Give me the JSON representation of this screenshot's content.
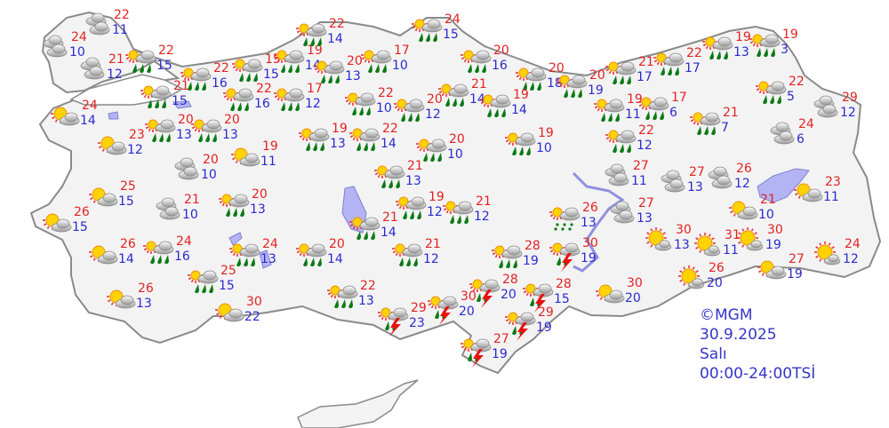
{
  "colors": {
    "max_temp": "#e32222",
    "min_temp": "#2a2ad0",
    "land": "#f3f3f3",
    "border": "#8a8a8a",
    "water": "#b4b4f4",
    "rain_drop": "#0a7a14",
    "thunder": "#e81010",
    "sun": "#ffd200"
  },
  "footer": {
    "copyright": "©MGM",
    "date": "30.9.2025",
    "day": "Salı",
    "period": "00:00-24:00TSİ"
  },
  "stations": [
    {
      "icon": "cloudy",
      "max": "22",
      "min": "11"
    },
    {
      "icon": "cloudy",
      "max": "24",
      "min": "10"
    },
    {
      "icon": "cloudy",
      "max": "21",
      "min": "12"
    },
    {
      "icon": "rain",
      "max": "22",
      "min": "15"
    },
    {
      "icon": "rain",
      "max": "22",
      "min": "16"
    },
    {
      "icon": "rain",
      "max": "15",
      "min": "15"
    },
    {
      "icon": "rain",
      "max": "19",
      "min": "14"
    },
    {
      "icon": "rain",
      "max": "22",
      "min": "14"
    },
    {
      "icon": "rain",
      "max": "20",
      "min": "13"
    },
    {
      "icon": "rain",
      "max": "17",
      "min": "10"
    },
    {
      "icon": "rain",
      "max": "21",
      "min": "15"
    },
    {
      "icon": "rain",
      "max": "22",
      "min": "16"
    },
    {
      "icon": "rain",
      "max": "17",
      "min": "12"
    },
    {
      "icon": "rain",
      "max": "22",
      "min": "10"
    },
    {
      "icon": "sun-cloud",
      "max": "24",
      "min": "14"
    },
    {
      "icon": "rain",
      "max": "20",
      "min": "13"
    },
    {
      "icon": "rain",
      "max": "20",
      "min": "13"
    },
    {
      "icon": "sun-cloud",
      "max": "23",
      "min": "12"
    },
    {
      "icon": "sun-cloud",
      "max": "19",
      "min": "11"
    },
    {
      "icon": "rain",
      "max": "19",
      "min": "13"
    },
    {
      "icon": "rain",
      "max": "22",
      "min": "14"
    },
    {
      "icon": "rain",
      "max": "20",
      "min": "12"
    },
    {
      "icon": "rain",
      "max": "24",
      "min": "15"
    },
    {
      "icon": "rain",
      "max": "20",
      "min": "16"
    },
    {
      "icon": "rain",
      "max": "20",
      "min": "18"
    },
    {
      "icon": "rain",
      "max": "20",
      "min": "19"
    },
    {
      "icon": "rain",
      "max": "21",
      "min": "17"
    },
    {
      "icon": "rain",
      "max": "22",
      "min": "17"
    },
    {
      "icon": "rain",
      "max": "19",
      "min": "13"
    },
    {
      "icon": "rain",
      "max": "19",
      "min": "3"
    },
    {
      "icon": "rain",
      "max": "21",
      "min": "14"
    },
    {
      "icon": "rain",
      "max": "19",
      "min": "14"
    },
    {
      "icon": "rain",
      "max": "20",
      "min": "10"
    },
    {
      "icon": "rain",
      "max": "19",
      "min": "10"
    },
    {
      "icon": "rain",
      "max": "19",
      "min": "11"
    },
    {
      "icon": "rain",
      "max": "17",
      "min": "6"
    },
    {
      "icon": "rain",
      "max": "22",
      "min": "12"
    },
    {
      "icon": "rain",
      "max": "21",
      "min": "7"
    },
    {
      "icon": "rain",
      "max": "22",
      "min": "5"
    },
    {
      "icon": "cloudy",
      "max": "29",
      "min": "12"
    },
    {
      "icon": "cloudy",
      "max": "24",
      "min": "6"
    },
    {
      "icon": "rain",
      "max": "21",
      "min": "13"
    },
    {
      "icon": "cloudy",
      "max": "20",
      "min": "10"
    },
    {
      "icon": "sun-cloud",
      "max": "25",
      "min": "15"
    },
    {
      "icon": "cloudy",
      "max": "21",
      "min": "10"
    },
    {
      "icon": "rain",
      "max": "20",
      "min": "13"
    },
    {
      "icon": "sun-cloud",
      "max": "26",
      "min": "15"
    },
    {
      "icon": "sun-cloud",
      "max": "26",
      "min": "14"
    },
    {
      "icon": "rain",
      "max": "24",
      "min": "16"
    },
    {
      "icon": "rain",
      "max": "24",
      "min": "13"
    },
    {
      "icon": "rain",
      "max": "25",
      "min": "15"
    },
    {
      "icon": "sun-cloud",
      "max": "26",
      "min": "13"
    },
    {
      "icon": "sun-cloud",
      "max": "30",
      "min": "22"
    },
    {
      "icon": "rain",
      "max": "20",
      "min": "14"
    },
    {
      "icon": "rain",
      "max": "21",
      "min": "14"
    },
    {
      "icon": "rain",
      "max": "19",
      "min": "12"
    },
    {
      "icon": "rain",
      "max": "21",
      "min": "12"
    },
    {
      "icon": "rain",
      "max": "21",
      "min": "12"
    },
    {
      "icon": "rain",
      "max": "22",
      "min": "13"
    },
    {
      "icon": "thunder",
      "max": "29",
      "min": "23"
    },
    {
      "icon": "thunder",
      "max": "30",
      "min": "20"
    },
    {
      "icon": "thunder",
      "max": "28",
      "min": "20"
    },
    {
      "icon": "rain",
      "max": "28",
      "min": "19"
    },
    {
      "icon": "thunder",
      "max": "28",
      "min": "15"
    },
    {
      "icon": "thunder",
      "max": "29",
      "min": "19"
    },
    {
      "icon": "thunder",
      "max": "27",
      "min": "19"
    },
    {
      "icon": "drizzle",
      "max": "26",
      "min": "13"
    },
    {
      "icon": "thunder",
      "max": "30",
      "min": "19"
    },
    {
      "icon": "sun-cloud",
      "max": "30",
      "min": "20"
    },
    {
      "icon": "cloudy",
      "max": "27",
      "min": "11"
    },
    {
      "icon": "cloudy",
      "max": "27",
      "min": "13"
    },
    {
      "icon": "cloudy",
      "max": "26",
      "min": "12"
    },
    {
      "icon": "cloudy",
      "max": "27",
      "min": "13"
    },
    {
      "icon": "sun-cloud",
      "max": "23",
      "min": "11"
    },
    {
      "icon": "sun-cloud",
      "max": "21",
      "min": "10"
    },
    {
      "icon": "sunny",
      "max": "30",
      "min": "13"
    },
    {
      "icon": "sunny",
      "max": "31",
      "min": "11"
    },
    {
      "icon": "sunny",
      "max": "30",
      "min": "19"
    },
    {
      "icon": "sunny",
      "max": "24",
      "min": "12"
    },
    {
      "icon": "sun-cloud",
      "max": "27",
      "min": "19"
    },
    {
      "icon": "sunny",
      "max": "26",
      "min": "20"
    }
  ]
}
